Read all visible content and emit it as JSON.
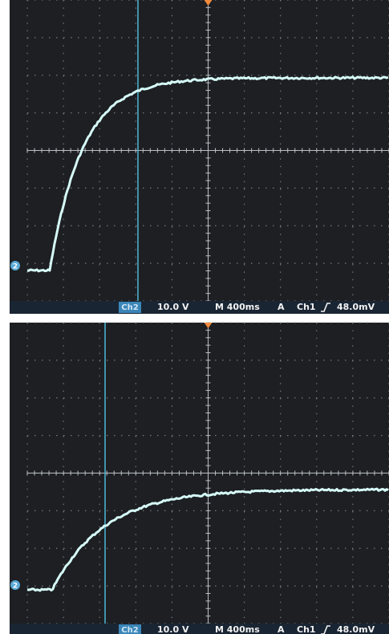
{
  "screens": [
    {
      "channel_marker": "2",
      "channel": "Ch2",
      "volts_per_div": "10.0 V",
      "timebase": "M 400ms",
      "trigger_mode": "A",
      "trigger_source": "Ch1",
      "trigger_level": "48.0mV"
    },
    {
      "channel_marker": "2",
      "channel": "Ch2",
      "volts_per_div": "10.0 V",
      "timebase": "M 400ms",
      "trigger_mode": "A",
      "trigger_source": "Ch1",
      "trigger_level": "48.0mV"
    }
  ]
}
